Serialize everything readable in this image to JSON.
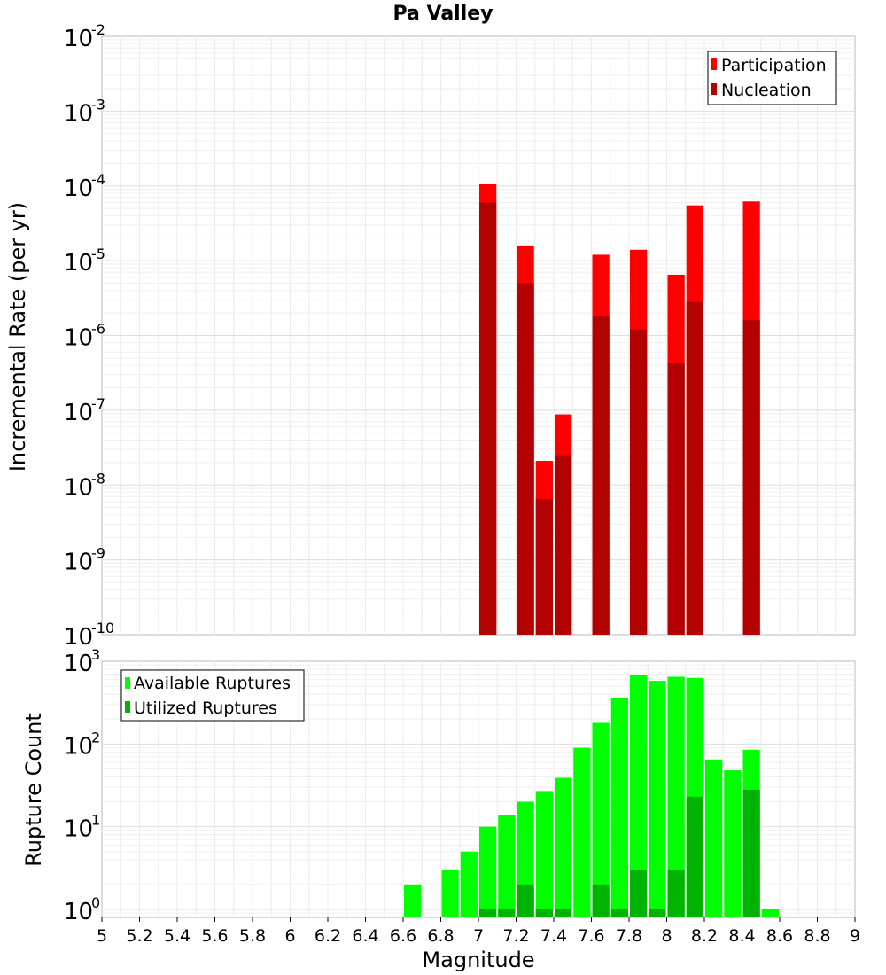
{
  "chart_data": [
    {
      "type": "bar",
      "title": "Pa Valley",
      "ylabel": "Incremental Rate (per yr)",
      "yscale": "log",
      "ylim": [
        1e-10,
        0.01
      ],
      "xlim": [
        5,
        9
      ],
      "bin_width": 0.1,
      "legend_placement": "top-right",
      "grid": true,
      "y_tick_exponents": [
        "-10",
        "-9",
        "-8",
        "-7",
        "-6",
        "-5",
        "-4",
        "-3",
        "-2"
      ],
      "y_tick_base": "10",
      "series": [
        {
          "name": "Participation",
          "color": "#ff0000",
          "x": [
            7.05,
            7.25,
            7.35,
            7.45,
            7.65,
            7.85,
            8.05,
            8.15,
            8.45
          ],
          "values": [
            0.000105,
            1.6e-05,
            2.1e-08,
            8.8e-08,
            1.2e-05,
            1.4e-05,
            6.5e-06,
            5.5e-05,
            6.2e-05
          ]
        },
        {
          "name": "Nucleation",
          "color": "#b30000",
          "x": [
            7.05,
            7.25,
            7.35,
            7.45,
            7.65,
            7.85,
            8.05,
            8.15,
            8.45
          ],
          "values": [
            6e-05,
            5e-06,
            6.5e-09,
            2.5e-08,
            1.8e-06,
            1.2e-06,
            4.3e-07,
            2.8e-06,
            1.6e-06
          ]
        }
      ]
    },
    {
      "type": "bar",
      "xlabel": "Magnitude",
      "ylabel": "Rupture Count",
      "yscale": "log",
      "ylim": [
        0.8,
        1000
      ],
      "xlim": [
        5,
        9
      ],
      "bin_width": 0.1,
      "legend_placement": "top-left",
      "grid": true,
      "x_ticks": [
        "5",
        "5.2",
        "5.4",
        "5.6",
        "5.8",
        "6",
        "6.2",
        "6.4",
        "6.6",
        "6.8",
        "7",
        "7.2",
        "7.4",
        "7.6",
        "7.8",
        "8",
        "8.2",
        "8.4",
        "8.6",
        "8.8",
        "9"
      ],
      "y_tick_exponents": [
        "0",
        "1",
        "2",
        "3"
      ],
      "y_tick_base": "10",
      "series": [
        {
          "name": "Available Ruptures",
          "color": "#00ff00",
          "x": [
            6.65,
            6.85,
            6.95,
            7.05,
            7.15,
            7.25,
            7.35,
            7.45,
            7.55,
            7.65,
            7.75,
            7.85,
            7.95,
            8.05,
            8.15,
            8.25,
            8.35,
            8.45,
            8.55
          ],
          "values": [
            2,
            3,
            5,
            10,
            14,
            20,
            27,
            39,
            90,
            180,
            360,
            680,
            580,
            650,
            630,
            65,
            48,
            85,
            1
          ]
        },
        {
          "name": "Utilized Ruptures",
          "color": "#00b300",
          "x": [
            7.05,
            7.15,
            7.25,
            7.35,
            7.45,
            7.65,
            7.75,
            7.85,
            7.95,
            8.05,
            8.15,
            8.45
          ],
          "values": [
            1,
            1,
            2,
            1,
            1,
            2,
            1,
            3,
            1,
            3,
            23,
            28
          ]
        }
      ]
    }
  ]
}
